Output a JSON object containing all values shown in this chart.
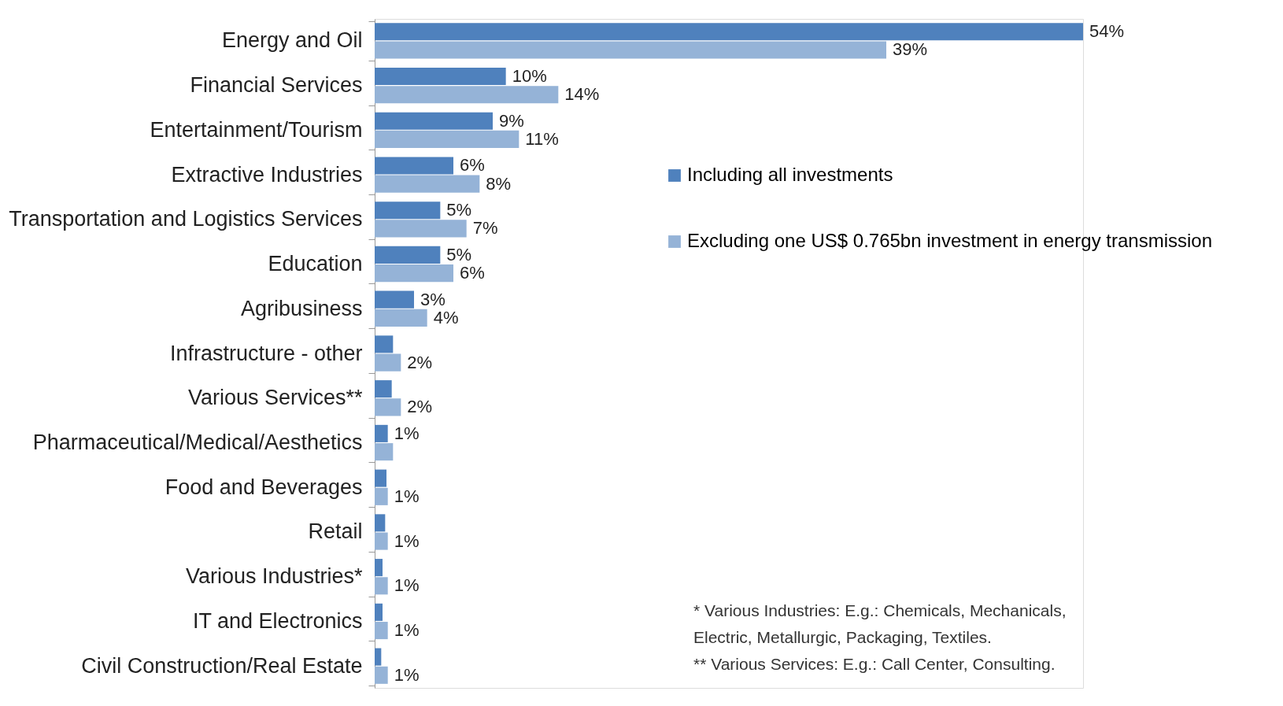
{
  "chart_data": {
    "type": "bar",
    "orientation": "horizontal",
    "categories": [
      "Energy and Oil",
      "Financial Services",
      "Entertainment/Tourism",
      "Extractive Industries",
      "Transportation and Logistics Services",
      "Education",
      "Agribusiness",
      "Infrastructure - other",
      "Various Services**",
      "Pharmaceutical/Medical/Aesthetics",
      "Food and Beverages",
      "Retail",
      "Various Industries*",
      "IT and Electronics",
      "Civil Construction/Real Estate"
    ],
    "series": [
      {
        "name": "Including all investments",
        "color": "#4f81bd",
        "values": [
          54,
          10,
          9,
          6,
          5,
          5,
          3,
          1.4,
          1.3,
          1,
          0.9,
          0.8,
          0.6,
          0.6,
          0.5
        ],
        "value_labels": [
          "54%",
          "10%",
          "9%",
          "6%",
          "5%",
          "5%",
          "3%",
          null,
          null,
          "1%",
          null,
          null,
          null,
          null,
          null
        ]
      },
      {
        "name": "Excluding one US$ 0.765bn investment in energy transmission",
        "color": "#95b3d7",
        "values": [
          39,
          14,
          11,
          8,
          7,
          6,
          4,
          2,
          2,
          1.4,
          1,
          1,
          1,
          1,
          1
        ],
        "value_labels": [
          "39%",
          "14%",
          "11%",
          "8%",
          "7%",
          "6%",
          "4%",
          "2%",
          "2%",
          null,
          "1%",
          "1%",
          "1%",
          "1%",
          "1%"
        ]
      }
    ],
    "legend": "right",
    "grid": false,
    "annotations": [
      "* Various Industries: E.g.: Chemicals, Mechanicals, Electric, Metallurgic, Packaging, Textiles.",
      "** Various Services: E.g.: Call Center, Consulting."
    ]
  }
}
